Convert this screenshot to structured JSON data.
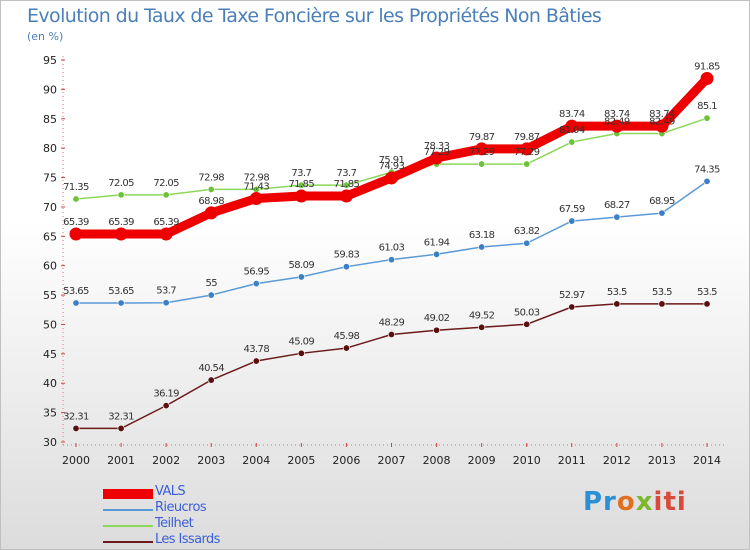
{
  "chart_data": {
    "type": "line",
    "title": "Evolution du Taux de Taxe Foncière sur les Propriétés Non Bâties",
    "subtitle": "(en %)",
    "categories": [
      "2000",
      "2001",
      "2002",
      "2003",
      "2004",
      "2005",
      "2006",
      "2007",
      "2008",
      "2009",
      "2010",
      "2011",
      "2012",
      "2013",
      "2014"
    ],
    "ylim": [
      30,
      95
    ],
    "yticks": [
      30,
      35,
      40,
      45,
      50,
      55,
      60,
      65,
      70,
      75,
      80,
      85,
      90,
      95
    ],
    "grid": false,
    "legend_position": "bottom-left",
    "series": [
      {
        "name": "VALS",
        "color": "#ee0000",
        "values": [
          65.39,
          65.39,
          65.39,
          68.98,
          71.43,
          71.85,
          71.85,
          74.93,
          78.33,
          79.87,
          79.87,
          83.74,
          83.74,
          83.74,
          91.85
        ],
        "labels": [
          "65.39",
          "65.39",
          "65.39",
          "68.98",
          "71.43",
          "71.85",
          "71.85",
          "74.93",
          "78.33",
          "79.87",
          "79.87",
          "83.74",
          "83.74",
          "83.74",
          "91.85"
        ]
      },
      {
        "name": "Rieucros",
        "color": "#5a9ad6",
        "values": [
          53.65,
          53.65,
          53.7,
          55,
          56.95,
          58.09,
          59.83,
          61.03,
          61.94,
          63.18,
          63.82,
          67.59,
          68.27,
          68.95,
          74.35
        ],
        "labels": [
          "53.65",
          "53.65",
          "53.7",
          "55",
          "56.95",
          "58.09",
          "59.83",
          "61.03",
          "61.94",
          "63.18",
          "63.82",
          "67.59",
          "68.27",
          "68.95",
          "74.35"
        ]
      },
      {
        "name": "Teilhet",
        "color": "#7ed04a",
        "values": [
          71.35,
          72.05,
          72.05,
          72.98,
          72.98,
          73.7,
          73.7,
          75.91,
          77.29,
          77.29,
          77.29,
          81.04,
          82.49,
          82.49,
          85.1
        ],
        "labels": [
          "71.35",
          "72.05",
          "72.05",
          "72.98",
          "72.98",
          "73.7",
          "73.7",
          "75.91",
          "77.29",
          "77.29",
          "77.29",
          "81.04",
          "82.49",
          "82.49",
          "85.1"
        ]
      },
      {
        "name": "Les Issards",
        "color": "#6b1a1a",
        "values": [
          32.31,
          32.31,
          36.19,
          40.54,
          43.78,
          45.09,
          45.98,
          48.29,
          49.02,
          49.52,
          50.03,
          52.97,
          53.5,
          53.5,
          53.5
        ],
        "labels": [
          "32.31",
          "32.31",
          "36.19",
          "40.54",
          "43.78",
          "45.09",
          "45.98",
          "48.29",
          "49.02",
          "49.52",
          "50.03",
          "52.97",
          "53.5",
          "53.5",
          "53.5"
        ]
      }
    ]
  },
  "logo": {
    "p1": "Pr",
    "p2": "o",
    "p3": "x",
    "p4": "iti"
  }
}
